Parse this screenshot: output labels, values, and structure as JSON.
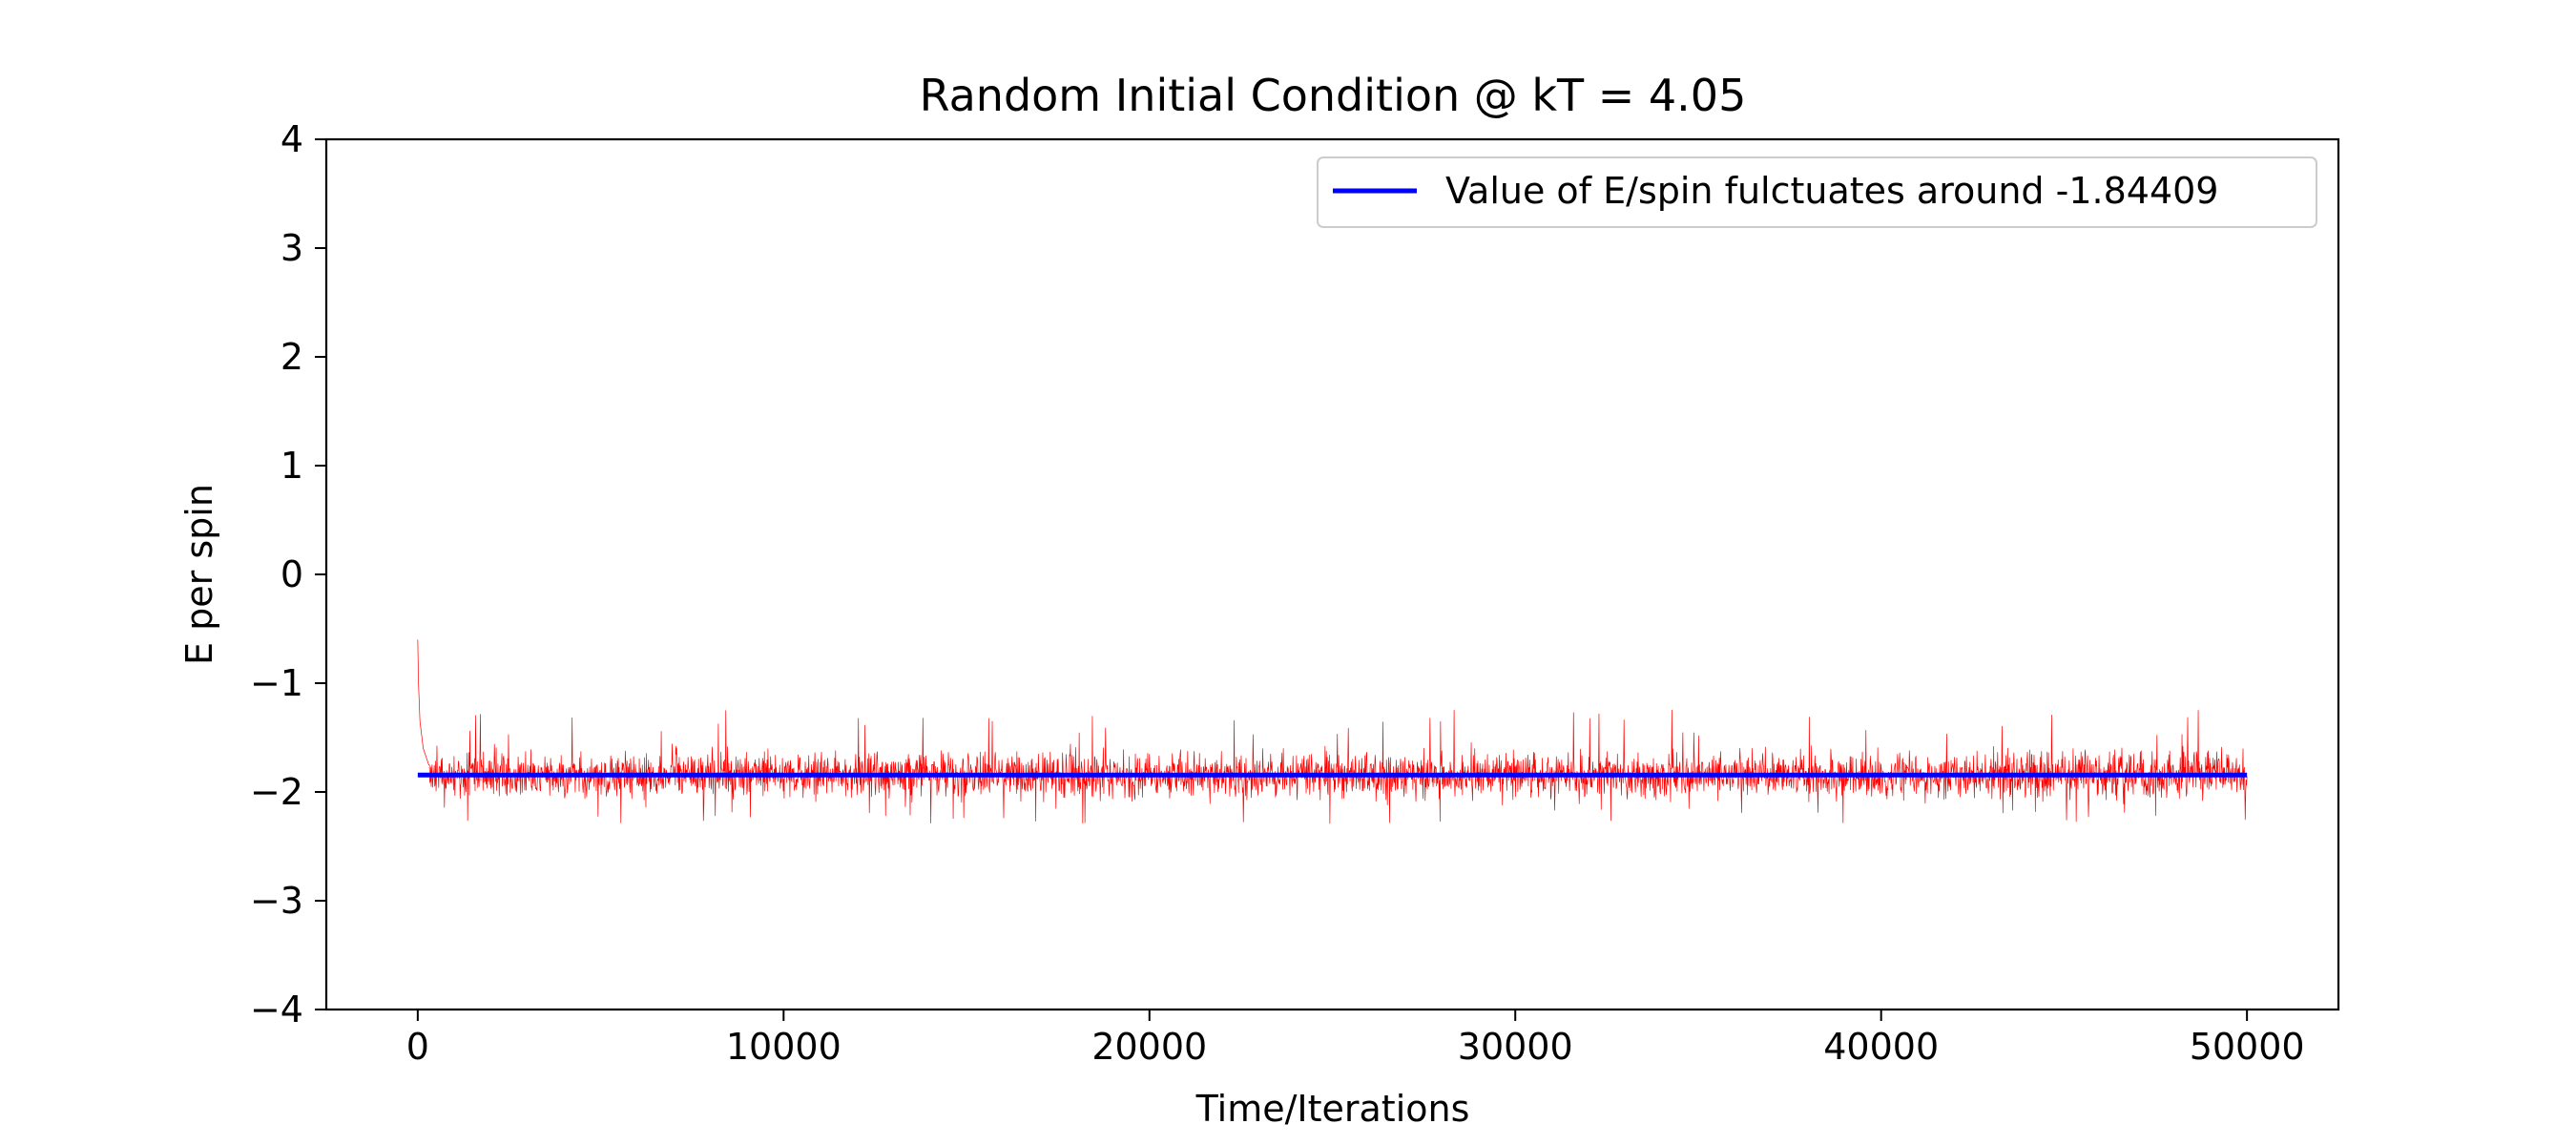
{
  "chart_data": {
    "type": "line",
    "title": "Random Initial Condition @ kT = 4.05",
    "xlabel": "Time/Iterations",
    "ylabel": "E per spin",
    "xlim": [
      -2500,
      52500
    ],
    "ylim": [
      -4,
      4
    ],
    "xticks": [
      0,
      10000,
      20000,
      30000,
      40000,
      50000
    ],
    "xtick_labels": [
      "0",
      "10000",
      "20000",
      "30000",
      "40000",
      "50000"
    ],
    "yticks": [
      -4,
      -3,
      -2,
      -1,
      0,
      1,
      2,
      3,
      4
    ],
    "ytick_labels": [
      "−4",
      "−3",
      "−2",
      "−1",
      "0",
      "1",
      "2",
      "3",
      "4"
    ],
    "grid": false,
    "legend_position": "upper right",
    "series": [
      {
        "name": "",
        "kind": "noisy-trace",
        "color": "#ff0000",
        "x_range": [
          0,
          50000
        ],
        "mean": -1.84409,
        "approx_min": -2.3,
        "approx_max": -1.2,
        "initial_value": -0.6,
        "initial_points": [
          [
            0,
            -0.6
          ],
          [
            20,
            -1.0
          ],
          [
            60,
            -1.35
          ],
          [
            150,
            -1.6
          ],
          [
            300,
            -1.75
          ]
        ]
      },
      {
        "name": "Value of E/spin fulctuates around -1.84409",
        "kind": "constant",
        "color": "#0000ff",
        "x": [
          0,
          50000
        ],
        "y": [
          -1.84409,
          -1.84409
        ]
      }
    ]
  }
}
